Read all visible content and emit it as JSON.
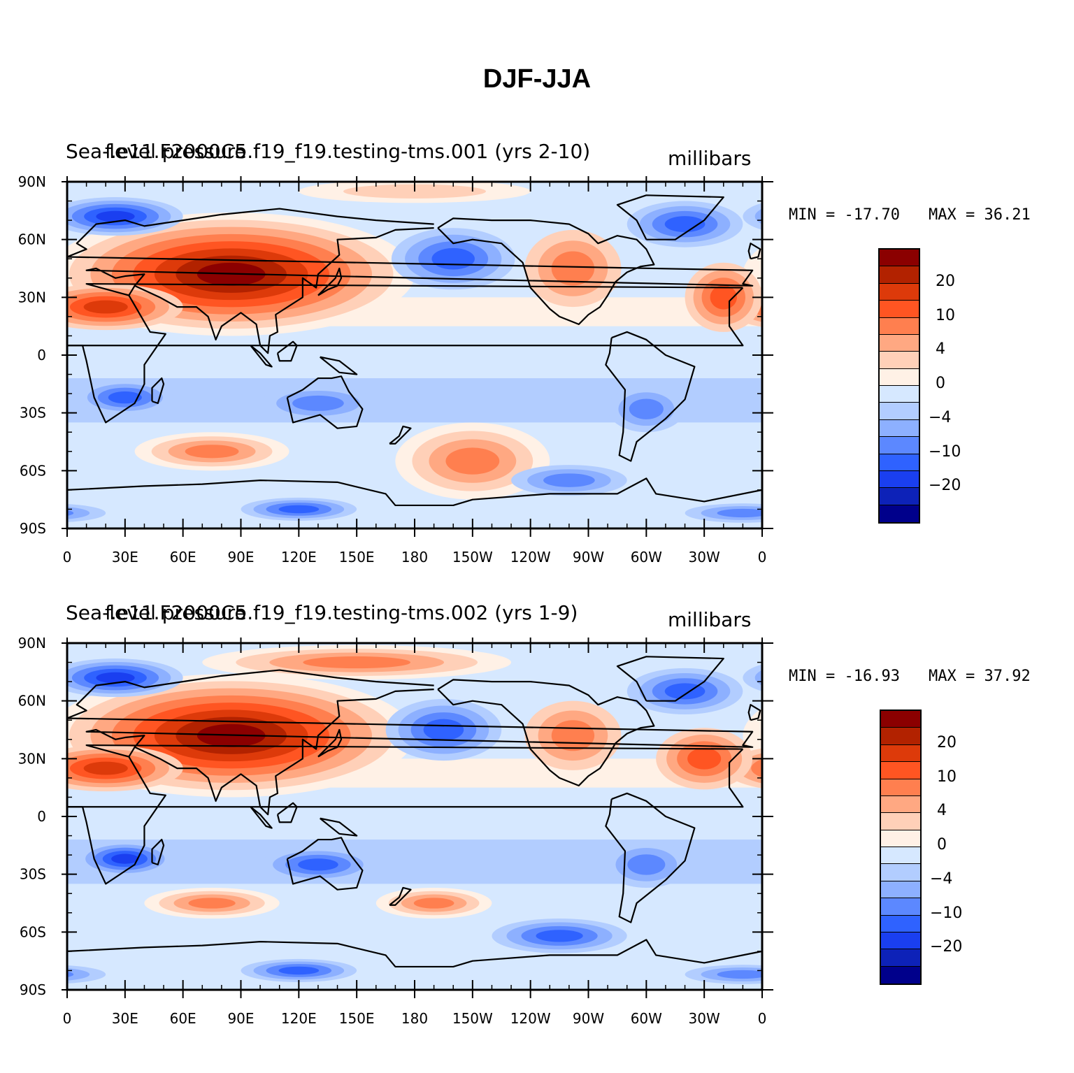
{
  "title": "DJF-JJA",
  "colors": {
    "levels": [
      "#8b0000",
      "#b22200",
      "#dd3a0a",
      "#ff5522",
      "#ff7f4f",
      "#ffa882",
      "#ffd0b8",
      "#fff1e6",
      "#d6e8ff",
      "#b2cdff",
      "#8db0ff",
      "#5c88ff",
      "#2f62ff",
      "#1a3ff0",
      "#0d22b8",
      "#00008b"
    ],
    "land_outline": "#000000"
  },
  "axes": {
    "lat_labels": [
      "90N",
      "60N",
      "30N",
      "0",
      "30S",
      "60S",
      "90S"
    ],
    "lon_labels": [
      "0",
      "30E",
      "60E",
      "90E",
      "120E",
      "150E",
      "180",
      "150W",
      "120W",
      "90W",
      "60W",
      "30W",
      "0"
    ]
  },
  "colorbar_labels": [
    "20",
    "10",
    "4",
    "0",
    "-4",
    "-10",
    "-20"
  ],
  "panels": [
    {
      "case_label": "f.e11.F2000C5.f19_f19.testing-tms.001 (yrs 2-10)",
      "variable_label": "Sea-level pressure",
      "units": "millibars",
      "min_label": "MIN = -17.70",
      "max_label": "MAX =  36.21"
    },
    {
      "case_label": "f.e11.F2000C5.f19_f19.testing-tms.002 (yrs 1-9)",
      "variable_label": "Sea-level pressure",
      "units": "millibars",
      "min_label": "MIN = -16.93",
      "max_label": "MAX =  37.92"
    }
  ]
}
